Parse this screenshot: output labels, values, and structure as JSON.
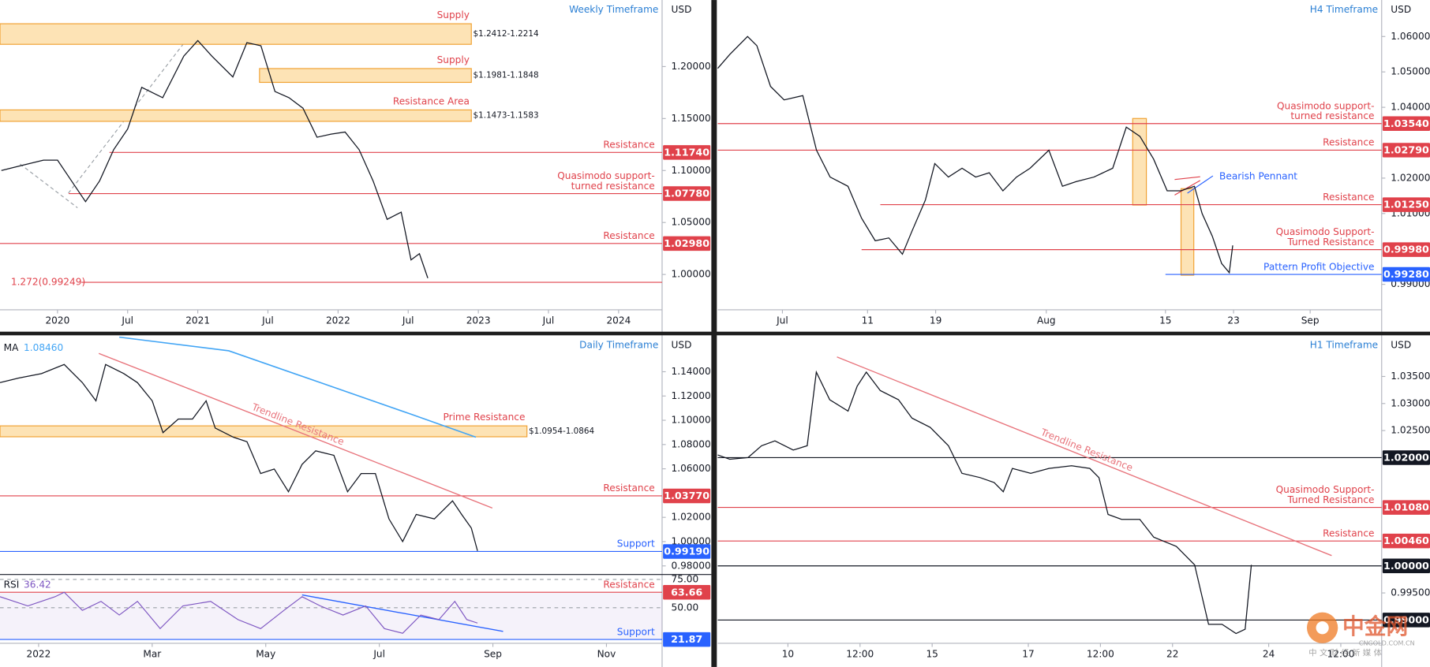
{
  "chart_data": [
    {
      "type": "line",
      "title": "Weekly Timeframe",
      "unit": "USD",
      "color": "#131722",
      "level_color": "#e0424b",
      "x": [
        2019.6,
        2019.75,
        2019.9,
        2020.0,
        2020.1,
        2020.2,
        2020.3,
        2020.4,
        2020.5,
        2020.6,
        2020.75,
        2020.9,
        2021.0,
        2021.1,
        2021.25,
        2021.35,
        2021.45,
        2021.55,
        2021.65,
        2021.75,
        2021.85,
        2021.95,
        2022.05,
        2022.15,
        2022.25,
        2022.35,
        2022.45,
        2022.52,
        2022.58,
        2022.64
      ],
      "values": [
        1.1,
        1.105,
        1.11,
        1.11,
        1.09,
        1.07,
        1.09,
        1.12,
        1.14,
        1.18,
        1.17,
        1.21,
        1.225,
        1.21,
        1.19,
        1.223,
        1.22,
        1.176,
        1.17,
        1.16,
        1.132,
        1.135,
        1.137,
        1.12,
        1.09,
        1.053,
        1.06,
        1.014,
        1.02,
        0.9965
      ],
      "xlim": [
        2019.59,
        2024.31
      ],
      "xticks": [
        2020,
        {
          "value": 2020.5,
          "label": "Jul"
        },
        2021,
        {
          "value": 2021.5,
          "label": "Jul"
        },
        2022,
        {
          "value": 2022.5,
          "label": "Jul"
        },
        2023,
        {
          "value": 2023.5,
          "label": "Jul"
        },
        2024
      ],
      "ylim": [
        0.966,
        1.264
      ],
      "yticks": [
        {
          "value": 1.2,
          "label": "1.20000"
        },
        {
          "value": 1.15,
          "label": "1.15000"
        },
        {
          "value": 1.1,
          "label": "1.10000"
        },
        {
          "value": 1.05,
          "label": "1.05000"
        },
        {
          "value": 1.0,
          "label": "1.00000"
        }
      ],
      "zones": [
        {
          "label": "Supply",
          "range_label": "$1.2412-1.2214",
          "low": 1.2214,
          "high": 1.2412,
          "to": 2022.95
        },
        {
          "label": "Supply",
          "range_label": "$1.1981-1.1848",
          "low": 1.1848,
          "high": 1.1981,
          "from": 2021.44,
          "to": 2022.95
        },
        {
          "label": "Resistance Area",
          "range_label": "$1.1473-1.1583",
          "low": 1.1473,
          "high": 1.1583,
          "to": 2022.95
        }
      ],
      "levels": [
        {
          "label": [
            "Resistance"
          ],
          "value": 1.1174,
          "value_label": "1.11740",
          "from": 2020.37
        },
        {
          "label": [
            "Quasimodo support-",
            "turned resistance"
          ],
          "value": 1.0778,
          "value_label": "1.07780",
          "from": 2020.08
        },
        {
          "label": [
            "Resistance"
          ],
          "value": 1.0298,
          "value_label": "1.02980"
        }
      ],
      "fib": {
        "label": "1.272(0.99249)",
        "value": 0.99249,
        "from": 2020.17
      }
    },
    {
      "type": "line",
      "title": "H4 Timeframe",
      "unit": "USD",
      "color": "#131722",
      "level_color": "#e0424b",
      "x": [
        -6.6,
        -5.2,
        -3.1,
        -2.0,
        -0.4,
        1.2,
        3.4,
        5.0,
        6.6,
        8.7,
        10.3,
        11.9,
        13.5,
        15.1,
        16.2,
        17.8,
        18.9,
        20.5,
        22.1,
        23.7,
        25.3,
        26.9,
        28.5,
        30.1,
        32.3,
        33.9,
        35.5,
        37.6,
        39.8,
        41.4,
        43.0,
        44.6,
        46.2,
        47.8,
        49.4,
        50.3,
        51.5,
        52.6,
        53.5,
        53.9
      ],
      "values": [
        1.051,
        1.0549,
        1.06,
        1.0574,
        1.0459,
        1.0421,
        1.0433,
        1.0279,
        1.0203,
        1.0177,
        1.0087,
        1.0023,
        1.0031,
        0.9985,
        1.0049,
        1.0138,
        1.0241,
        1.0203,
        1.0228,
        1.0203,
        1.0215,
        1.0164,
        1.0203,
        1.0228,
        1.0279,
        1.0177,
        1.019,
        1.0203,
        1.0228,
        1.0344,
        1.0318,
        1.0254,
        1.0164,
        1.0164,
        1.0177,
        1.01,
        1.0036,
        0.9959,
        0.9933,
        1.001
      ],
      "xlim": [
        -6.6,
        71.4
      ],
      "xticks": [
        {
          "value": 1,
          "label": "Jul"
        },
        11,
        19,
        {
          "value": 32,
          "label": "Aug"
        },
        {
          "value": 46,
          "label": "15"
        },
        {
          "value": 54,
          "label": "23"
        },
        {
          "value": 63,
          "label": "Sep"
        }
      ],
      "ylim": [
        0.9828,
        1.0703
      ],
      "yticks": [
        {
          "value": 1.06,
          "label": "1.06000"
        },
        {
          "value": 1.05,
          "label": "1.05000"
        },
        {
          "value": 1.04,
          "label": "1.04000"
        },
        {
          "value": 1.02,
          "label": "1.02000"
        },
        {
          "value": 1.01,
          "label": "1.01000"
        },
        {
          "value": 0.99,
          "label": "0.99000"
        }
      ],
      "levels": [
        {
          "label": [
            "Quasimodo support-",
            "turned resistance"
          ],
          "value": 1.0354,
          "value_label": "1.03540"
        },
        {
          "label": [
            "Resistance"
          ],
          "value": 1.0279,
          "value_label": "1.02790"
        },
        {
          "label": [
            "Resistance"
          ],
          "value": 1.0125,
          "value_label": "1.01250",
          "from": 12.5
        },
        {
          "label": [
            "Quasimodo Support-",
            "Turned Resistance"
          ],
          "value": 0.9998,
          "value_label": "0.99980",
          "from": 10.3
        },
        {
          "label": [
            "Pattern Profit Objective"
          ],
          "value": 0.9928,
          "value_label": "0.99280",
          "from": 46,
          "color": "#2962ff"
        }
      ],
      "annotation": "Bearish Pennant"
    },
    {
      "type": "line",
      "title": "Daily Timeframe",
      "unit": "USD",
      "color": "#131722",
      "level_color": "#e0424b",
      "x": [
        -0.68,
        -0.35,
        0.05,
        0.45,
        0.77,
        1.01,
        1.18,
        1.5,
        1.74,
        2.0,
        2.19,
        2.46,
        2.71,
        2.95,
        3.11,
        3.43,
        3.67,
        3.91,
        4.15,
        4.4,
        4.64,
        4.88,
        5.2,
        5.44,
        5.68,
        5.93,
        6.17,
        6.41,
        6.65,
        6.97,
        7.29,
        7.45,
        7.62,
        7.73
      ],
      "values": [
        1.131,
        1.1348,
        1.1385,
        1.146,
        1.131,
        1.116,
        1.146,
        1.1385,
        1.131,
        1.116,
        1.0898,
        1.101,
        1.101,
        1.116,
        1.0936,
        1.0861,
        1.0823,
        1.0561,
        1.0599,
        1.0411,
        1.0636,
        1.0748,
        1.0711,
        1.0411,
        1.0561,
        1.0561,
        1.0187,
        1.0,
        1.0224,
        1.0187,
        1.0336,
        1.0224,
        1.0112,
        0.9924
      ],
      "xlim": [
        -0.68,
        10.98
      ],
      "xticks": [
        {
          "value": 0,
          "label": "2022"
        },
        {
          "value": 2,
          "label": "Mar"
        },
        {
          "value": 4,
          "label": "May"
        },
        {
          "value": 6,
          "label": "Jul"
        },
        {
          "value": 8,
          "label": "Sep"
        },
        {
          "value": 10,
          "label": "Nov"
        }
      ],
      "ylim": [
        0.9733,
        1.17
      ],
      "yticks": [
        {
          "value": 1.14,
          "label": "1.14000"
        },
        {
          "value": 1.12,
          "label": "1.12000"
        },
        {
          "value": 1.1,
          "label": "1.10000"
        },
        {
          "value": 1.08,
          "label": "1.08000"
        },
        {
          "value": 1.06,
          "label": "1.06000"
        },
        {
          "value": 1.02,
          "label": "1.02000"
        },
        {
          "value": 1.0,
          "label": "1.00000"
        },
        {
          "value": 0.98,
          "label": "0.98000"
        }
      ],
      "ma": {
        "label": "MA",
        "readout": "1.08460",
        "color": "#42a5f5",
        "x": [
          1.42,
          3.35,
          4.96,
          6.57,
          7.7
        ],
        "values": [
          1.1685,
          1.1572,
          1.131,
          1.1048,
          1.0861
        ]
      },
      "zones": [
        {
          "label": "Prime Resistance",
          "range_label": "$1.0954-1.0864",
          "low": 1.0864,
          "high": 1.0954,
          "to": 8.6
        }
      ],
      "levels": [
        {
          "label": [
            "Resistance"
          ],
          "value": 1.0377,
          "value_label": "1.03770"
        },
        {
          "label": [
            "Support"
          ],
          "value": 0.9919,
          "value_label": "0.99190",
          "color": "#2962ff"
        }
      ],
      "trendlines": [
        {
          "label": "Trendline Resistance",
          "from": [
            1.06,
            1.1551
          ],
          "to": [
            7.99,
            1.0277
          ],
          "color": "#e8747c"
        }
      ],
      "rsi": {
        "label": "RSI",
        "readout": "36.42",
        "color": "#7e57c2",
        "x": [
          -0.68,
          -0.19,
          0.29,
          0.45,
          0.77,
          1.1,
          1.42,
          1.74,
          2.14,
          2.54,
          3.03,
          3.51,
          3.91,
          4.32,
          4.64,
          4.96,
          5.36,
          5.76,
          6.09,
          6.41,
          6.73,
          7.05,
          7.33,
          7.54,
          7.73
        ],
        "values": [
          59.7,
          51.6,
          59.7,
          63.7,
          47.6,
          55.6,
          43.5,
          55.6,
          31.5,
          51.6,
          55.6,
          39.5,
          31.5,
          47.6,
          59.7,
          51.6,
          43.5,
          51.6,
          31.5,
          27.4,
          43.5,
          39.5,
          55.6,
          39.5,
          36.4
        ],
        "ylim": [
          18.5,
          79
        ],
        "yticks": [
          {
            "value": 75,
            "label": "75.00"
          },
          {
            "value": 50,
            "label": "50.00"
          }
        ],
        "levels": [
          {
            "label": [
              "Resistance"
            ],
            "value": 63.66,
            "value_label": "63.66"
          },
          {
            "label": [
              "Support"
            ],
            "value": 21.87,
            "value_label": "21.87",
            "color": "#2962ff"
          }
        ],
        "trendlines": [
          {
            "from": [
              4.64,
              61.3
            ],
            "to": [
              8.18,
              29.0
            ],
            "color": "#2962ff"
          }
        ]
      }
    },
    {
      "type": "line",
      "title": "H1 Timeframe",
      "unit": "USD",
      "color": "#131722",
      "level_color": "#e0424b",
      "x": [
        -1.46,
        -1.21,
        -0.83,
        -0.55,
        -0.27,
        0.11,
        0.4,
        0.59,
        0.87,
        1.25,
        1.44,
        1.63,
        1.92,
        2.3,
        2.58,
        2.96,
        3.34,
        3.62,
        4.0,
        4.29,
        4.48,
        4.67,
        5.05,
        5.43,
        5.9,
        6.28,
        6.47,
        6.66,
        6.94,
        7.32,
        7.61,
        8.08,
        8.46,
        8.75,
        9.03,
        9.32,
        9.51,
        9.64
      ],
      "values": [
        1.0205,
        1.0197,
        1.02,
        1.0222,
        1.0231,
        1.0214,
        1.0222,
        1.0358,
        1.0307,
        1.0286,
        1.0332,
        1.0358,
        1.0324,
        1.0307,
        1.0273,
        1.0256,
        1.0222,
        1.0171,
        1.0163,
        1.0154,
        1.0137,
        1.018,
        1.0171,
        1.018,
        1.0185,
        1.018,
        1.0163,
        1.0095,
        1.0086,
        1.0086,
        1.0053,
        1.0036,
        1.0002,
        0.9892,
        0.9892,
        0.9875,
        0.9883,
        1.0002
      ],
      "xlim": [
        -1.46,
        12.35
      ],
      "xticks": [
        {
          "value": 0,
          "label": "10"
        },
        {
          "value": 1.5,
          "label": "12:00"
        },
        {
          "value": 3,
          "label": "15"
        },
        {
          "value": 5,
          "label": "17"
        },
        {
          "value": 6.5,
          "label": "12:00"
        },
        {
          "value": 8,
          "label": "22"
        },
        {
          "value": 10,
          "label": "24"
        },
        {
          "value": 11.5,
          "label": "12:00"
        }
      ],
      "ylim": [
        0.9857,
        1.0426
      ],
      "yticks": [
        {
          "value": 1.035,
          "label": "1.03500"
        },
        {
          "value": 1.03,
          "label": "1.03000"
        },
        {
          "value": 1.025,
          "label": "1.02500"
        },
        {
          "value": 0.995,
          "label": "0.99500"
        }
      ],
      "levels": [
        {
          "value": 1.02,
          "value_label": "1.02000",
          "color": "#131722"
        },
        {
          "label": [
            "Quasimodo Support-",
            "Turned Resistance"
          ],
          "value": 1.0108,
          "value_label": "1.01080"
        },
        {
          "label": [
            "Resistance"
          ],
          "value": 1.0046,
          "value_label": "1.00460"
        },
        {
          "value": 1.0,
          "value_label": "1.00000",
          "color": "#131722"
        },
        {
          "value": 0.99,
          "value_label": "0.99000",
          "color": "#131722"
        }
      ],
      "trendlines": [
        {
          "label": "Trendline Resistance",
          "from": [
            1.02,
            1.0386
          ],
          "to": [
            11.31,
            1.0019
          ],
          "color": "#e8747c"
        }
      ]
    }
  ],
  "watermark": {
    "brand": "中金网",
    "domain": "CNGOLD.COM.CN",
    "tagline": "中 文 财 经 新 媒 体"
  }
}
